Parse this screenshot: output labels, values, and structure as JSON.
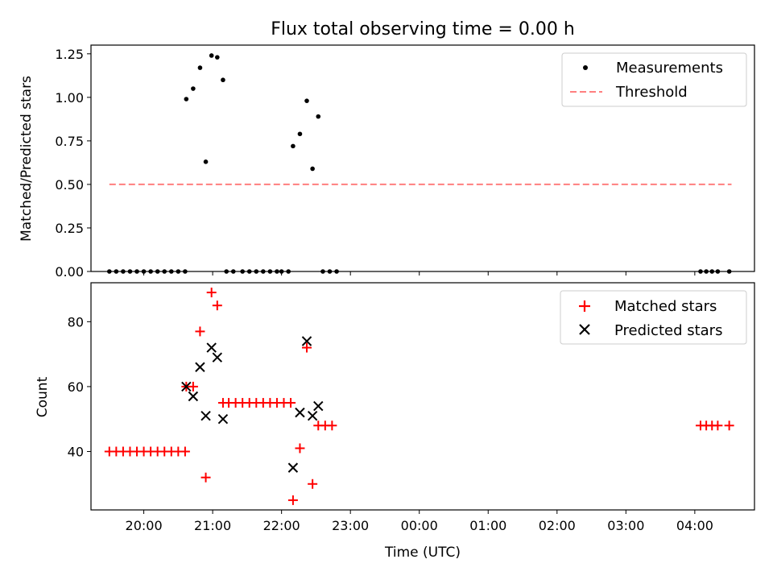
{
  "chart_data": [
    {
      "type": "scatter",
      "title": "Flux total observing time = 0.00 h",
      "xlabel": "",
      "ylabel": "Matched/Predicted stars",
      "xlim": [
        "19:14",
        "04:52"
      ],
      "ylim": [
        0,
        1.3
      ],
      "x_ticks": [
        "20:00",
        "21:00",
        "22:00",
        "23:00",
        "00:00",
        "01:00",
        "02:00",
        "03:00",
        "04:00"
      ],
      "y_ticks": [
        "0.00",
        "0.25",
        "0.50",
        "0.75",
        "1.00",
        "1.25"
      ],
      "legend_position": "top-right",
      "series": [
        {
          "name": "Measurements",
          "marker": "dot",
          "color": "#000000",
          "points": [
            [
              "19:30",
              0
            ],
            [
              "19:36",
              0
            ],
            [
              "19:42",
              0
            ],
            [
              "19:48",
              0
            ],
            [
              "19:54",
              0
            ],
            [
              "20:00",
              0
            ],
            [
              "20:06",
              0
            ],
            [
              "20:12",
              0
            ],
            [
              "20:18",
              0
            ],
            [
              "20:24",
              0
            ],
            [
              "20:30",
              0
            ],
            [
              "20:36",
              0
            ],
            [
              "20:37",
              0.99
            ],
            [
              "20:43",
              1.05
            ],
            [
              "20:49",
              1.17
            ],
            [
              "20:54",
              0.63
            ],
            [
              "20:59",
              1.24
            ],
            [
              "21:04",
              1.23
            ],
            [
              "21:09",
              1.1
            ],
            [
              "21:12",
              0
            ],
            [
              "21:18",
              0
            ],
            [
              "21:26",
              0
            ],
            [
              "21:32",
              0
            ],
            [
              "21:38",
              0
            ],
            [
              "21:44",
              0
            ],
            [
              "21:50",
              0
            ],
            [
              "21:56",
              0
            ],
            [
              "22:00",
              0
            ],
            [
              "22:06",
              0
            ],
            [
              "22:10",
              0.72
            ],
            [
              "22:16",
              0.79
            ],
            [
              "22:22",
              0.98
            ],
            [
              "22:27",
              0.59
            ],
            [
              "22:32",
              0.89
            ],
            [
              "22:36",
              0
            ],
            [
              "22:42",
              0
            ],
            [
              "22:48",
              0
            ],
            [
              "04:05",
              0
            ],
            [
              "04:10",
              0
            ],
            [
              "04:15",
              0
            ],
            [
              "04:20",
              0
            ],
            [
              "04:30",
              0
            ]
          ]
        },
        {
          "name": "Threshold",
          "style": "dashed-line",
          "color": "#ff7f7f",
          "points": [
            [
              "19:30",
              0.5
            ],
            [
              "04:32",
              0.5
            ]
          ]
        }
      ]
    },
    {
      "type": "scatter",
      "title": "",
      "xlabel": "Time (UTC)",
      "ylabel": "Count",
      "xlim": [
        "19:14",
        "04:52"
      ],
      "ylim": [
        22,
        92
      ],
      "x_ticks": [
        "20:00",
        "21:00",
        "22:00",
        "23:00",
        "00:00",
        "01:00",
        "02:00",
        "03:00",
        "04:00"
      ],
      "y_ticks": [
        "40",
        "60",
        "80"
      ],
      "legend_position": "top-right",
      "series": [
        {
          "name": "Matched stars",
          "marker": "plus",
          "color": "#ff0000",
          "points": [
            [
              "19:30",
              40
            ],
            [
              "19:36",
              40
            ],
            [
              "19:42",
              40
            ],
            [
              "19:48",
              40
            ],
            [
              "19:54",
              40
            ],
            [
              "20:00",
              40
            ],
            [
              "20:06",
              40
            ],
            [
              "20:12",
              40
            ],
            [
              "20:18",
              40
            ],
            [
              "20:24",
              40
            ],
            [
              "20:30",
              40
            ],
            [
              "20:36",
              40
            ],
            [
              "20:37",
              60
            ],
            [
              "20:43",
              60
            ],
            [
              "20:49",
              77
            ],
            [
              "20:54",
              32
            ],
            [
              "20:59",
              89
            ],
            [
              "21:04",
              85
            ],
            [
              "21:09",
              55
            ],
            [
              "21:14",
              55
            ],
            [
              "21:20",
              55
            ],
            [
              "21:26",
              55
            ],
            [
              "21:32",
              55
            ],
            [
              "21:38",
              55
            ],
            [
              "21:44",
              55
            ],
            [
              "21:50",
              55
            ],
            [
              "21:56",
              55
            ],
            [
              "22:02",
              55
            ],
            [
              "22:08",
              55
            ],
            [
              "22:10",
              25
            ],
            [
              "22:16",
              41
            ],
            [
              "22:22",
              72
            ],
            [
              "22:27",
              30
            ],
            [
              "22:32",
              48
            ],
            [
              "22:38",
              48
            ],
            [
              "22:44",
              48
            ],
            [
              "04:05",
              48
            ],
            [
              "04:10",
              48
            ],
            [
              "04:15",
              48
            ],
            [
              "04:20",
              48
            ],
            [
              "04:30",
              48
            ]
          ]
        },
        {
          "name": "Predicted stars",
          "marker": "x",
          "color": "#000000",
          "points": [
            [
              "20:37",
              60
            ],
            [
              "20:43",
              57
            ],
            [
              "20:49",
              66
            ],
            [
              "20:54",
              51
            ],
            [
              "20:59",
              72
            ],
            [
              "21:04",
              69
            ],
            [
              "21:09",
              50
            ],
            [
              "22:10",
              35
            ],
            [
              "22:16",
              52
            ],
            [
              "22:22",
              74
            ],
            [
              "22:27",
              51
            ],
            [
              "22:32",
              54
            ]
          ]
        }
      ]
    }
  ]
}
